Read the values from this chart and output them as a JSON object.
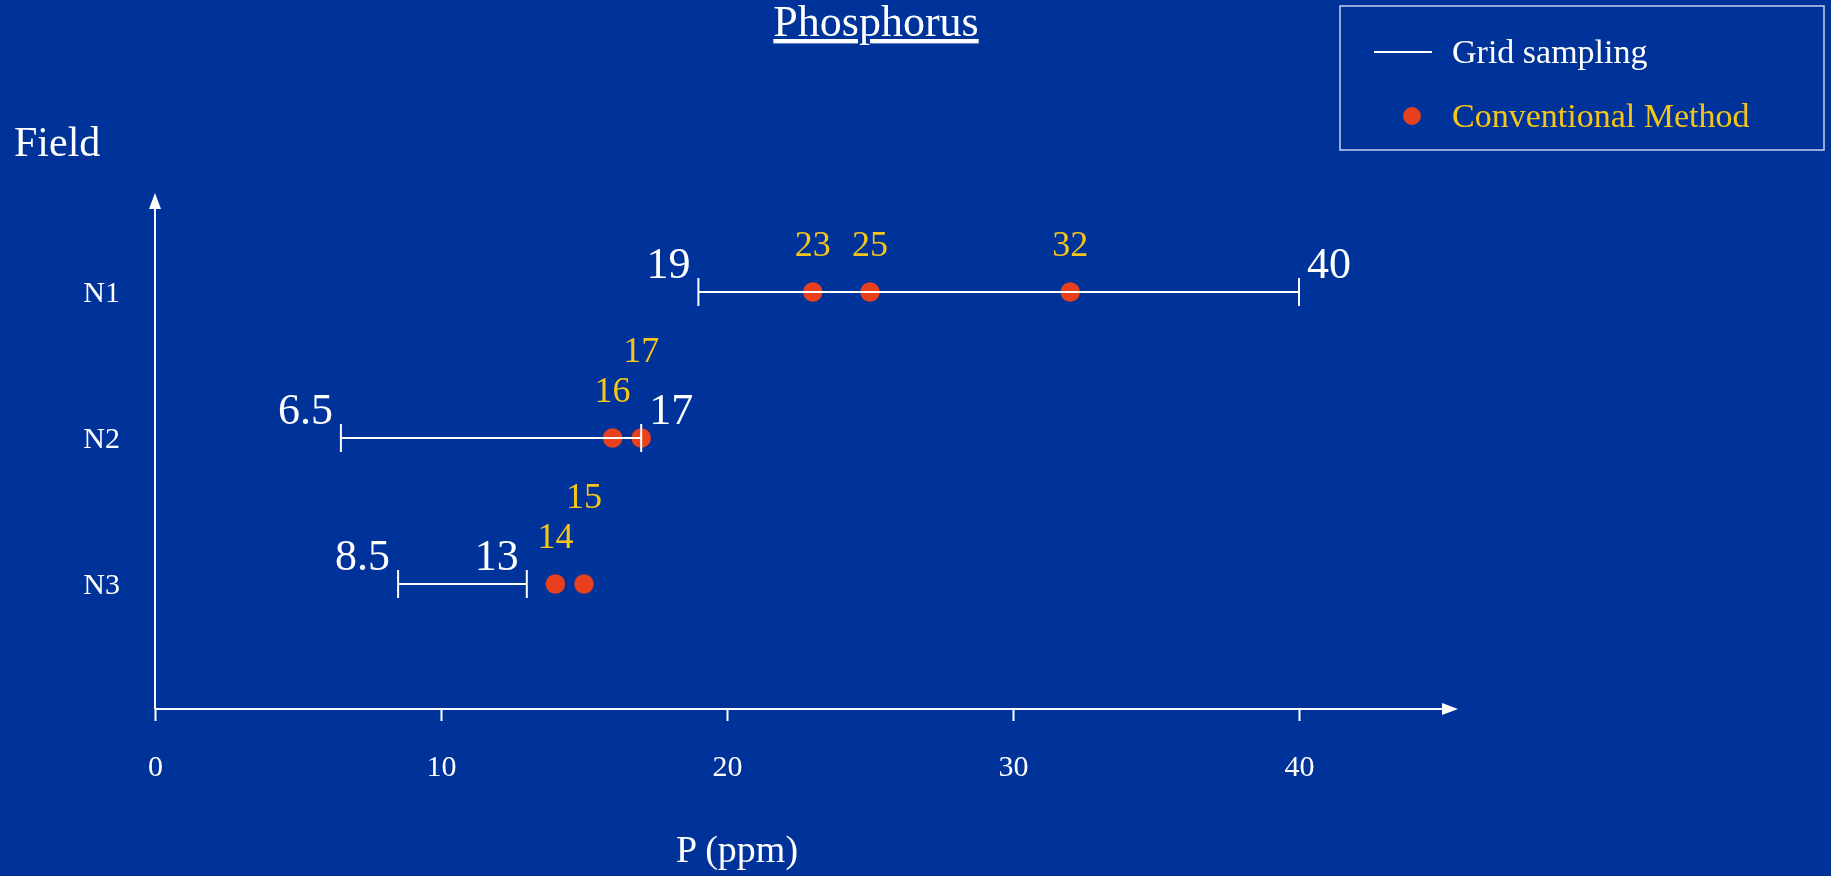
{
  "chart_data": {
    "type": "bar",
    "orientation": "horizontal",
    "title": "Phosphorus",
    "xlabel": "P (ppm)",
    "ylabel": "Field",
    "categories": [
      "N1",
      "N2",
      "N3"
    ],
    "xlim": [
      0,
      45
    ],
    "xticks": [
      0,
      10,
      20,
      30,
      40
    ],
    "legend": "top right",
    "marker": "circle",
    "series": [
      {
        "name": "Grid sampling",
        "type": "bar",
        "color": "#ffffff",
        "base": [
          19,
          6.5,
          8.5
        ],
        "values": [
          21,
          10.5,
          4.5
        ]
      },
      {
        "name": "Conventional Method",
        "type": "scatter",
        "color": "#e8401c",
        "x": [
          "N1",
          "N1",
          "N1",
          "N2",
          "N2",
          "N3",
          "N3"
        ],
        "values": [
          23,
          25,
          32,
          16,
          17,
          14,
          15
        ],
        "value_labels": [
          "23",
          "25",
          "32",
          "16",
          "17",
          "14",
          "15"
        ]
      }
    ],
    "annotations": [
      {
        "text": "19",
        "x": 19,
        "y": "N1"
      },
      {
        "text": "40",
        "x": 40,
        "y": "N1"
      },
      {
        "text": "6.5",
        "x": 6.5,
        "y": "N2"
      },
      {
        "text": "17",
        "x": 17,
        "y": "N2"
      },
      {
        "text": "8.5",
        "x": 8.5,
        "y": "N3"
      },
      {
        "text": "13",
        "x": 13,
        "y": "N3"
      }
    ]
  }
}
